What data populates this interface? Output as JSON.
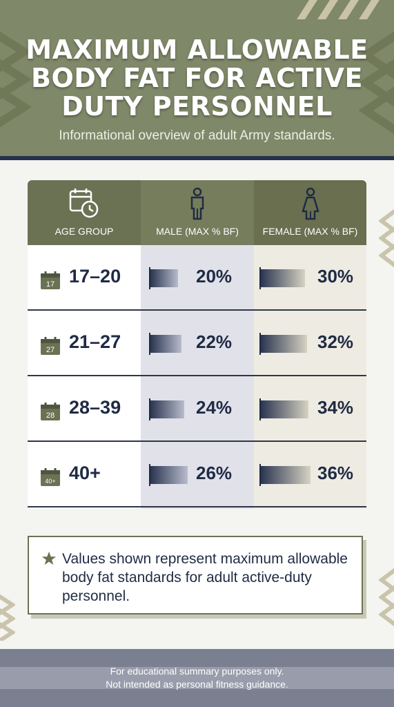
{
  "header": {
    "title_lines": [
      "MAXIMUM ALLOWABLE",
      "BODY FAT FOR ACTIVE",
      "DUTY PERSONNEL"
    ],
    "subtitle": "Informational overview of adult Army standards."
  },
  "table": {
    "columns": {
      "age": {
        "label": "AGE GROUP",
        "icon": "calendar-clock-icon"
      },
      "male": {
        "label": "MALE (MAX % BF)",
        "icon": "male-figure-icon"
      },
      "female": {
        "label": "FEMALE (MAX % BF)",
        "icon": "female-figure-icon"
      }
    },
    "rows": [
      {
        "age": "17–20",
        "calendar_label": "17",
        "male": "20%",
        "female": "30%",
        "male_value": 20,
        "female_value": 30
      },
      {
        "age": "21–27",
        "calendar_label": "27",
        "male": "22%",
        "female": "32%",
        "male_value": 22,
        "female_value": 32
      },
      {
        "age": "28–39",
        "calendar_label": "28",
        "male": "24%",
        "female": "34%",
        "male_value": 24,
        "female_value": 34
      },
      {
        "age": "40+",
        "calendar_label": "40+",
        "male": "26%",
        "female": "36%",
        "male_value": 26,
        "female_value": 36
      }
    ]
  },
  "note": {
    "icon": "star-icon",
    "text": "Values shown represent maximum allowable body fat standards for adult active-duty personnel."
  },
  "footer": {
    "lines": [
      "For educational summary purposes only.",
      "Not intended as personal fitness guidance."
    ]
  },
  "colors": {
    "olive": "#7f8868",
    "navy": "#253249",
    "male_column": "#e1e1ea",
    "female_column": "#eeebe2",
    "footer": "#7b8090"
  }
}
